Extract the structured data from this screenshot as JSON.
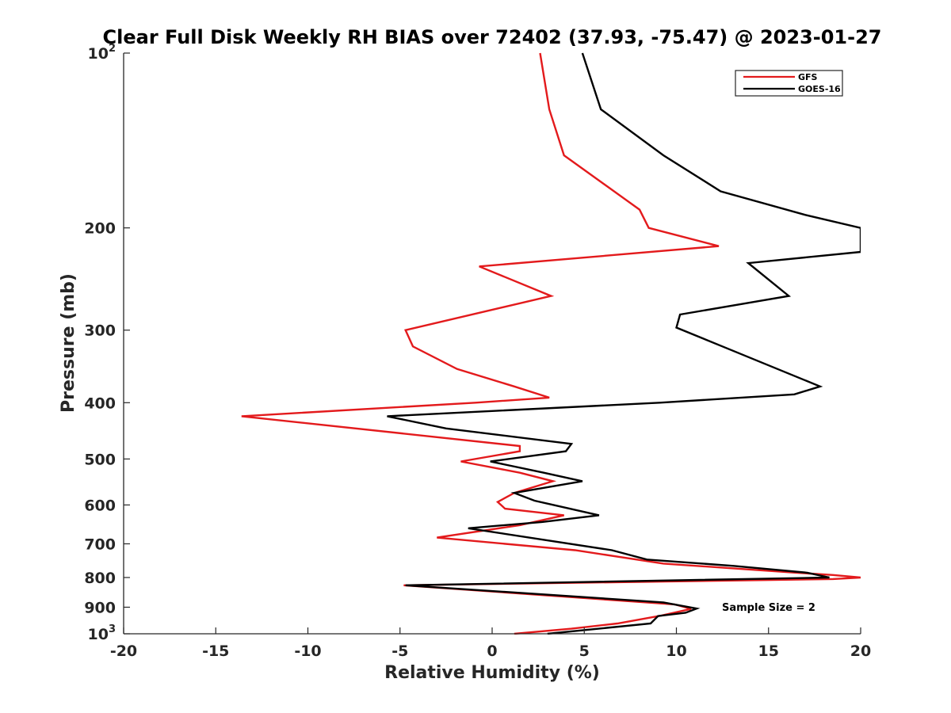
{
  "chart_data": {
    "type": "line",
    "title": "Clear Full Disk Weekly RH BIAS over 72402 (37.93, -75.47) @ 2023-01-27",
    "xlabel": "Relative Humidity (%)",
    "ylabel": "Pressure (mb)",
    "xlim": [
      -20,
      20
    ],
    "ylim": [
      100,
      1000
    ],
    "yscale": "log",
    "y_reversed": true,
    "x_ticks": [
      -20,
      -15,
      -10,
      -5,
      0,
      5,
      10,
      15,
      20
    ],
    "x_tick_labels": [
      "-20",
      "-15",
      "-10",
      "-5",
      "0",
      "5",
      "10",
      "15",
      "20"
    ],
    "y_ticks": [
      100,
      200,
      300,
      400,
      500,
      600,
      700,
      800,
      900,
      1000
    ],
    "y_tick_labels": [
      {
        "base": "10",
        "exp": "2"
      },
      {
        "base": "200",
        "exp": ""
      },
      {
        "base": "300",
        "exp": ""
      },
      {
        "base": "400",
        "exp": ""
      },
      {
        "base": "500",
        "exp": ""
      },
      {
        "base": "600",
        "exp": ""
      },
      {
        "base": "700",
        "exp": ""
      },
      {
        "base": "800",
        "exp": ""
      },
      {
        "base": "900",
        "exp": ""
      },
      {
        "base": "10",
        "exp": "3"
      }
    ],
    "legend": {
      "position": "top-right",
      "entries": [
        "GFS",
        "GOES-16"
      ]
    },
    "annotation": "Sample Size = 2",
    "series": [
      {
        "name": "GFS",
        "color": "#e31a1c",
        "points": [
          [
            2.6,
            100
          ],
          [
            3.1,
            125
          ],
          [
            3.9,
            150
          ],
          [
            8.0,
            186
          ],
          [
            8.5,
            200
          ],
          [
            12.3,
            215
          ],
          [
            -0.7,
            233
          ],
          [
            3.2,
            262
          ],
          [
            -4.7,
            300
          ],
          [
            -4.3,
            320
          ],
          [
            -1.9,
            350
          ],
          [
            1.2,
            375
          ],
          [
            3.1,
            392
          ],
          [
            -0.9,
            400
          ],
          [
            -13.6,
            422
          ],
          [
            1.5,
            475
          ],
          [
            1.5,
            485
          ],
          [
            -1.7,
            505
          ],
          [
            1.5,
            528
          ],
          [
            3.3,
            546
          ],
          [
            1.2,
            572
          ],
          [
            0.3,
            593
          ],
          [
            0.7,
            609
          ],
          [
            3.9,
            625
          ],
          [
            1.5,
            650
          ],
          [
            -3.0,
            683
          ],
          [
            4.5,
            718
          ],
          [
            9.3,
            757
          ],
          [
            16.5,
            785
          ],
          [
            18.5,
            792
          ],
          [
            20.0,
            800
          ],
          [
            18.5,
            805
          ],
          [
            -4.8,
            825
          ],
          [
            9.9,
            890
          ],
          [
            10.8,
            906
          ],
          [
            9.2,
            930
          ],
          [
            6.8,
            960
          ],
          [
            4.3,
            980
          ],
          [
            1.2,
            1000
          ]
        ]
      },
      {
        "name": "GOES-16",
        "color": "#000000",
        "points": [
          [
            4.9,
            100
          ],
          [
            5.9,
            125
          ],
          [
            9.3,
            150
          ],
          [
            12.4,
            173
          ],
          [
            17.0,
            190
          ],
          [
            20.0,
            200
          ],
          [
            20.0,
            220
          ],
          [
            13.9,
            230
          ],
          [
            16.1,
            262
          ],
          [
            10.2,
            282
          ],
          [
            10.0,
            297
          ],
          [
            12.5,
            320
          ],
          [
            17.8,
            375
          ],
          [
            16.4,
            387
          ],
          [
            9.1,
            400
          ],
          [
            -5.7,
            422
          ],
          [
            -2.5,
            443
          ],
          [
            4.3,
            471
          ],
          [
            4.0,
            485
          ],
          [
            -0.1,
            505
          ],
          [
            2.8,
            528
          ],
          [
            4.9,
            546
          ],
          [
            1.2,
            572
          ],
          [
            2.3,
            590
          ],
          [
            5.8,
            625
          ],
          [
            2.7,
            642
          ],
          [
            -1.3,
            658
          ],
          [
            6.5,
            718
          ],
          [
            8.4,
            745
          ],
          [
            13.1,
            764
          ],
          [
            17.1,
            785
          ],
          [
            18.3,
            800
          ],
          [
            -4.7,
            825
          ],
          [
            9.3,
            883
          ],
          [
            11.1,
            905
          ],
          [
            10.5,
            920
          ],
          [
            9.0,
            932
          ],
          [
            8.6,
            960
          ],
          [
            3.0,
            1000
          ]
        ]
      }
    ]
  }
}
